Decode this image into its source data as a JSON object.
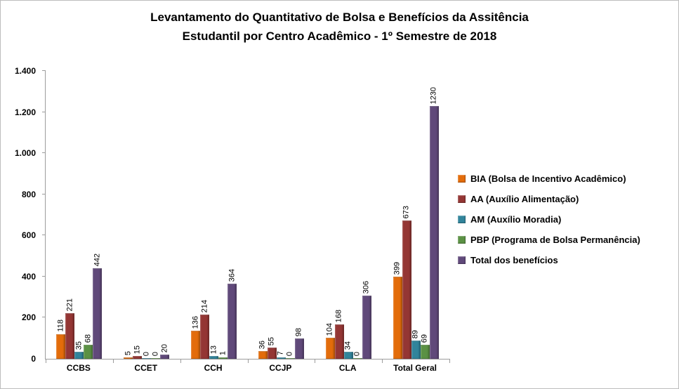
{
  "title": {
    "line1": "Levantamento do Quantitativo de Bolsa e Benefícios da Assitência",
    "line2": "Estudantil  por Centro Acadêmico - 1º Semestre de 2018"
  },
  "chart_data": {
    "type": "bar",
    "title": "Levantamento do Quantitativo de Bolsa e Benefícios da Assitência Estudantil por Centro Acadêmico - 1º Semestre de 2018",
    "categories": [
      "CCBS",
      "CCET",
      "CCH",
      "CCJP",
      "CLA",
      "Total Geral"
    ],
    "series": [
      {
        "name": "BIA (Bolsa de Incentivo Acadêmico)",
        "color": "#E36C0A",
        "values": [
          118,
          5,
          136,
          36,
          104,
          399
        ]
      },
      {
        "name": "AA (Auxílio Alimentação)",
        "color": "#943634",
        "values": [
          221,
          15,
          214,
          55,
          168,
          673
        ]
      },
      {
        "name": "AM (Auxílio Moradia)",
        "color": "#31849B",
        "values": [
          35,
          0,
          13,
          7,
          34,
          89
        ]
      },
      {
        "name": "PBP (Programa de Bolsa Permanência)",
        "color": "#5B9144",
        "values": [
          68,
          0,
          1,
          0,
          0,
          69
        ]
      },
      {
        "name": "Total dos benefícios",
        "color": "#60497A",
        "values": [
          442,
          20,
          364,
          98,
          306,
          1230
        ]
      }
    ],
    "xlabel": "",
    "ylabel": "",
    "ylim": [
      0,
      1400
    ],
    "ytick_step": 200,
    "ytick_labels": [
      "0",
      "200",
      "400",
      "600",
      "800",
      "1.000",
      "1.200",
      "1.400"
    ],
    "grid": false,
    "legend_position": "right",
    "value_labels": "rotated-90-above-bars"
  }
}
